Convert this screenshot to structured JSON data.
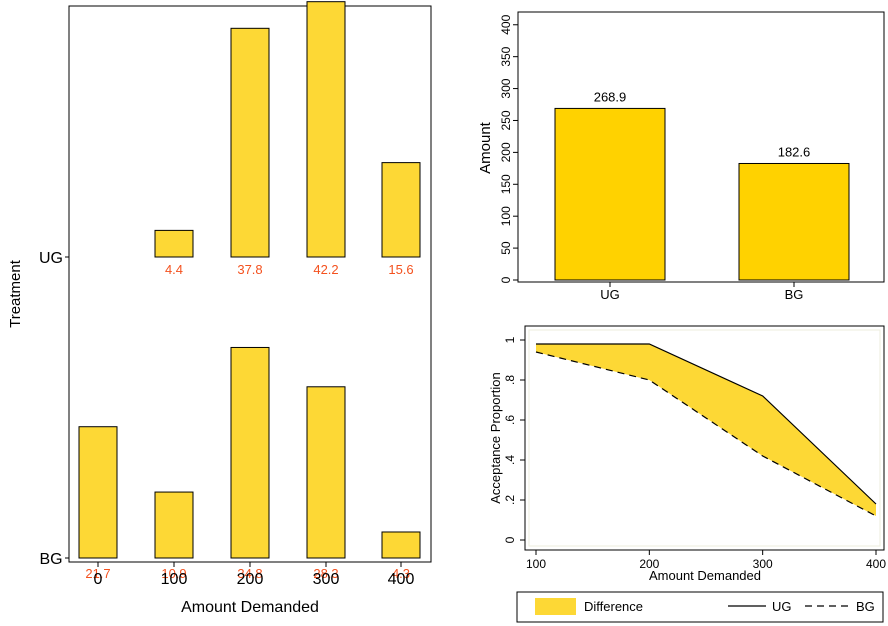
{
  "chart_data": [
    {
      "id": "distribution",
      "type": "bar",
      "xlabel": "Amount Demanded",
      "ylabel": "Treatment",
      "categories": [
        "0",
        "100",
        "200",
        "300",
        "400"
      ],
      "series": [
        {
          "name": "UG",
          "values": [
            0,
            4.4,
            37.8,
            42.2,
            15.6
          ],
          "labels": [
            "",
            "4.4",
            "37.8",
            "42.2",
            "15.6"
          ]
        },
        {
          "name": "BG",
          "values": [
            21.7,
            10.9,
            34.8,
            28.3,
            4.3
          ],
          "labels": [
            "21.7",
            "10.9",
            "34.8",
            "28.3",
            "4.3"
          ]
        }
      ],
      "bar_color": "#FDD835",
      "label_color": "#F4511E"
    },
    {
      "id": "mean-amount",
      "type": "bar",
      "ylabel": "Amount",
      "categories": [
        "UG",
        "BG"
      ],
      "values": [
        268.9,
        182.6
      ],
      "value_labels": [
        "268.9",
        "182.6"
      ],
      "ylim": [
        0,
        420
      ],
      "yticks": [
        "0",
        "50",
        "100",
        "150",
        "200",
        "250",
        "300",
        "350",
        "400"
      ],
      "bar_color": "#FFD200"
    },
    {
      "id": "acceptance",
      "type": "line",
      "xlabel": "Amount Demanded",
      "ylabel": "Acceptance Proportion",
      "x": [
        100,
        200,
        300,
        400
      ],
      "xticks": [
        "100",
        "200",
        "300",
        "400"
      ],
      "yticks": [
        "0",
        ".2",
        ".4",
        ".6",
        ".8",
        "1"
      ],
      "ylim": [
        0,
        1
      ],
      "series": [
        {
          "name": "UG",
          "values": [
            0.98,
            0.98,
            0.72,
            0.18
          ],
          "style": "solid"
        },
        {
          "name": "BG",
          "values": [
            0.94,
            0.8,
            0.42,
            0.12
          ],
          "style": "dashed"
        }
      ],
      "area_name": "Difference",
      "area_color": "#FDD835",
      "legend": [
        "Difference",
        "UG",
        "BG"
      ],
      "legend_position": "bottom"
    }
  ]
}
